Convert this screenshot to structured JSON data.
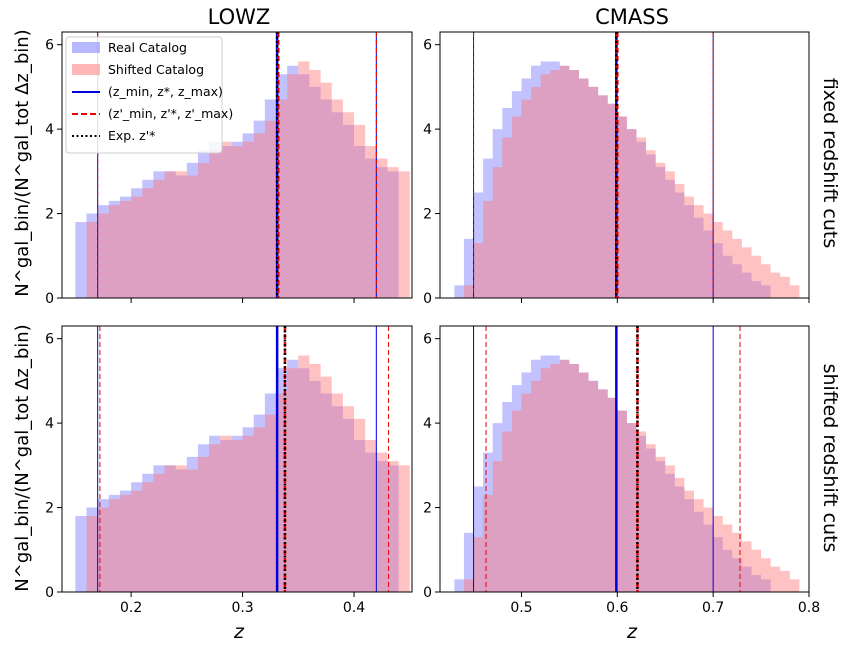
{
  "figure": {
    "column_titles": [
      "LOWZ",
      "CMASS"
    ],
    "row_titles": [
      "fixed redshift cuts",
      "shifted redshift cuts"
    ],
    "xlabel": "z",
    "ylabel": "N^gal_bin/(N^gal_tot Δz_bin)"
  },
  "legend": {
    "placement": "upper-left of top-left panel",
    "entries": [
      {
        "label": "Real Catalog",
        "kind": "patch",
        "color": "#9999ff"
      },
      {
        "label": "Shifted Catalog",
        "kind": "patch",
        "color": "#ff9999"
      },
      {
        "label": "(z_min, z*, z_max)",
        "kind": "line",
        "color": "#0000dd",
        "dash": "solid"
      },
      {
        "label": "(z'_min, z'*, z'_max)",
        "kind": "line",
        "color": "#ee0000",
        "dash": "dashed"
      },
      {
        "label": "Exp. z'*",
        "kind": "line",
        "color": "#000000",
        "dash": "dotted"
      }
    ]
  },
  "colors": {
    "real": "#7777ff",
    "shifted": "#ff7777",
    "blue_line": "#0000dd",
    "red_line": "#ee0000"
  },
  "chart_data": [
    {
      "type": "area",
      "panel": "LOWZ fixed redshift cuts",
      "xlim": [
        0.138,
        0.452
      ],
      "ylim": [
        0,
        6.3
      ],
      "xticks": [
        "0.2",
        "0.3",
        "0.4"
      ],
      "xtick_values": [
        0.2,
        0.3,
        0.4
      ],
      "yticks": [
        "0",
        "2",
        "4",
        "6"
      ],
      "ytick_values": [
        0,
        2,
        4,
        6
      ],
      "series": [
        {
          "name": "Real Catalog",
          "x": [
            0.15,
            0.16,
            0.17,
            0.18,
            0.19,
            0.2,
            0.21,
            0.22,
            0.23,
            0.24,
            0.25,
            0.26,
            0.27,
            0.28,
            0.29,
            0.3,
            0.31,
            0.32,
            0.33,
            0.34,
            0.35,
            0.36,
            0.37,
            0.38,
            0.39,
            0.4,
            0.41,
            0.42,
            0.43
          ],
          "y": [
            1.8,
            2.0,
            2.2,
            2.3,
            2.4,
            2.6,
            2.8,
            3.0,
            3.0,
            2.9,
            3.2,
            3.5,
            3.7,
            3.6,
            3.7,
            3.9,
            4.2,
            4.7,
            5.3,
            5.5,
            5.3,
            5.0,
            4.7,
            4.4,
            4.1,
            3.6,
            3.3,
            3.1,
            3.0
          ]
        },
        {
          "name": "Shifted Catalog",
          "x": [
            0.16,
            0.17,
            0.18,
            0.19,
            0.2,
            0.21,
            0.22,
            0.23,
            0.24,
            0.25,
            0.26,
            0.27,
            0.28,
            0.29,
            0.3,
            0.31,
            0.32,
            0.33,
            0.34,
            0.35,
            0.36,
            0.37,
            0.38,
            0.39,
            0.4,
            0.41,
            0.42,
            0.43,
            0.44
          ],
          "y": [
            1.8,
            2.0,
            2.2,
            2.3,
            2.4,
            2.6,
            2.8,
            3.0,
            3.0,
            2.9,
            3.2,
            3.5,
            3.7,
            3.6,
            3.7,
            3.9,
            4.2,
            4.7,
            5.3,
            5.6,
            5.4,
            5.1,
            4.7,
            4.4,
            4.1,
            3.6,
            3.3,
            3.1,
            3.0
          ]
        }
      ],
      "vlines": [
        {
          "x": 0.17,
          "style": "blue",
          "width": 1
        },
        {
          "x": 0.331,
          "style": "blue",
          "width": 2.5
        },
        {
          "x": 0.42,
          "style": "blue",
          "width": 1
        },
        {
          "x": 0.17,
          "style": "red",
          "width": 1
        },
        {
          "x": 0.332,
          "style": "red",
          "width": 2.5
        },
        {
          "x": 0.42,
          "style": "red",
          "width": 1
        },
        {
          "x": 0.331,
          "style": "dot",
          "width": 2.5
        }
      ]
    },
    {
      "type": "area",
      "panel": "CMASS fixed redshift cuts",
      "xlim": [
        0.415,
        0.8
      ],
      "ylim": [
        0,
        6.3
      ],
      "xticks": [
        "0.5",
        "0.6",
        "0.7",
        "0.8"
      ],
      "xtick_values": [
        0.5,
        0.6,
        0.7,
        0.8
      ],
      "yticks": [
        "0",
        "2",
        "4",
        "6"
      ],
      "ytick_values": [
        0,
        2,
        4,
        6
      ],
      "series": [
        {
          "name": "Real Catalog",
          "x": [
            0.43,
            0.44,
            0.45,
            0.46,
            0.47,
            0.48,
            0.49,
            0.5,
            0.51,
            0.52,
            0.53,
            0.54,
            0.55,
            0.56,
            0.57,
            0.58,
            0.59,
            0.6,
            0.61,
            0.62,
            0.63,
            0.64,
            0.65,
            0.66,
            0.67,
            0.68,
            0.69,
            0.7,
            0.71,
            0.72,
            0.73,
            0.74,
            0.75
          ],
          "y": [
            0.3,
            1.4,
            2.5,
            3.3,
            4.0,
            4.5,
            4.9,
            5.2,
            5.5,
            5.6,
            5.6,
            5.5,
            5.4,
            5.2,
            5.0,
            4.8,
            4.6,
            4.3,
            4.0,
            3.7,
            3.4,
            3.1,
            2.8,
            2.5,
            2.2,
            1.9,
            1.6,
            1.3,
            1.0,
            0.8,
            0.6,
            0.4,
            0.3
          ]
        },
        {
          "name": "Shifted Catalog",
          "x": [
            0.44,
            0.45,
            0.46,
            0.47,
            0.48,
            0.49,
            0.5,
            0.51,
            0.52,
            0.53,
            0.54,
            0.55,
            0.56,
            0.57,
            0.58,
            0.59,
            0.6,
            0.61,
            0.62,
            0.63,
            0.64,
            0.65,
            0.66,
            0.67,
            0.68,
            0.69,
            0.7,
            0.71,
            0.72,
            0.73,
            0.74,
            0.75,
            0.76,
            0.77,
            0.78
          ],
          "y": [
            0.3,
            1.3,
            2.3,
            3.1,
            3.8,
            4.3,
            4.7,
            5.0,
            5.3,
            5.4,
            5.5,
            5.4,
            5.2,
            5.0,
            4.8,
            4.6,
            4.3,
            4.0,
            3.8,
            3.5,
            3.2,
            3.0,
            2.7,
            2.4,
            2.2,
            2.0,
            1.8,
            1.6,
            1.4,
            1.2,
            1.0,
            0.8,
            0.6,
            0.5,
            0.3
          ]
        }
      ],
      "vlines": [
        {
          "x": 0.45,
          "style": "blue",
          "width": 1
        },
        {
          "x": 0.599,
          "style": "blue",
          "width": 2.5
        },
        {
          "x": 0.7,
          "style": "blue",
          "width": 1
        },
        {
          "x": 0.45,
          "style": "red",
          "width": 1
        },
        {
          "x": 0.6,
          "style": "red",
          "width": 2.5
        },
        {
          "x": 0.7,
          "style": "red",
          "width": 1
        },
        {
          "x": 0.599,
          "style": "dot",
          "width": 2.5
        }
      ]
    },
    {
      "type": "area",
      "panel": "LOWZ shifted redshift cuts",
      "xlim": [
        0.138,
        0.452
      ],
      "ylim": [
        0,
        6.3
      ],
      "xticks": [
        "0.2",
        "0.3",
        "0.4"
      ],
      "xtick_values": [
        0.2,
        0.3,
        0.4
      ],
      "yticks": [
        "0",
        "2",
        "4",
        "6"
      ],
      "ytick_values": [
        0,
        2,
        4,
        6
      ],
      "series": [
        {
          "name": "Real Catalog",
          "x": [
            0.15,
            0.16,
            0.17,
            0.18,
            0.19,
            0.2,
            0.21,
            0.22,
            0.23,
            0.24,
            0.25,
            0.26,
            0.27,
            0.28,
            0.29,
            0.3,
            0.31,
            0.32,
            0.33,
            0.34,
            0.35,
            0.36,
            0.37,
            0.38,
            0.39,
            0.4,
            0.41,
            0.42,
            0.43
          ],
          "y": [
            1.8,
            2.0,
            2.2,
            2.3,
            2.4,
            2.6,
            2.8,
            3.0,
            3.0,
            2.9,
            3.2,
            3.5,
            3.7,
            3.6,
            3.7,
            3.9,
            4.2,
            4.7,
            5.3,
            5.5,
            5.3,
            5.0,
            4.7,
            4.4,
            4.1,
            3.6,
            3.3,
            3.1,
            3.0
          ]
        },
        {
          "name": "Shifted Catalog",
          "x": [
            0.16,
            0.17,
            0.18,
            0.19,
            0.2,
            0.21,
            0.22,
            0.23,
            0.24,
            0.25,
            0.26,
            0.27,
            0.28,
            0.29,
            0.3,
            0.31,
            0.32,
            0.33,
            0.34,
            0.35,
            0.36,
            0.37,
            0.38,
            0.39,
            0.4,
            0.41,
            0.42,
            0.43,
            0.44
          ],
          "y": [
            1.8,
            2.0,
            2.2,
            2.3,
            2.4,
            2.6,
            2.8,
            3.0,
            3.0,
            2.9,
            3.2,
            3.5,
            3.7,
            3.6,
            3.7,
            3.9,
            4.2,
            4.7,
            5.3,
            5.6,
            5.4,
            5.1,
            4.7,
            4.4,
            4.1,
            3.6,
            3.3,
            3.1,
            3.0
          ]
        }
      ],
      "vlines": [
        {
          "x": 0.17,
          "style": "blue",
          "width": 1
        },
        {
          "x": 0.331,
          "style": "blue",
          "width": 2.5
        },
        {
          "x": 0.42,
          "style": "blue",
          "width": 1
        },
        {
          "x": 0.172,
          "style": "red",
          "width": 1
        },
        {
          "x": 0.338,
          "style": "red",
          "width": 2.5
        },
        {
          "x": 0.431,
          "style": "red",
          "width": 1
        },
        {
          "x": 0.338,
          "style": "dot",
          "width": 2.5
        }
      ]
    },
    {
      "type": "area",
      "panel": "CMASS shifted redshift cuts",
      "xlim": [
        0.415,
        0.8
      ],
      "ylim": [
        0,
        6.3
      ],
      "xticks": [
        "0.5",
        "0.6",
        "0.7",
        "0.8"
      ],
      "xtick_values": [
        0.5,
        0.6,
        0.7,
        0.8
      ],
      "yticks": [
        "0",
        "2",
        "4",
        "6"
      ],
      "ytick_values": [
        0,
        2,
        4,
        6
      ],
      "series": [
        {
          "name": "Real Catalog",
          "x": [
            0.43,
            0.44,
            0.45,
            0.46,
            0.47,
            0.48,
            0.49,
            0.5,
            0.51,
            0.52,
            0.53,
            0.54,
            0.55,
            0.56,
            0.57,
            0.58,
            0.59,
            0.6,
            0.61,
            0.62,
            0.63,
            0.64,
            0.65,
            0.66,
            0.67,
            0.68,
            0.69,
            0.7,
            0.71,
            0.72,
            0.73,
            0.74,
            0.75
          ],
          "y": [
            0.3,
            1.4,
            2.5,
            3.3,
            4.0,
            4.5,
            4.9,
            5.2,
            5.5,
            5.6,
            5.6,
            5.5,
            5.4,
            5.2,
            5.0,
            4.8,
            4.6,
            4.3,
            4.0,
            3.7,
            3.4,
            3.1,
            2.8,
            2.5,
            2.2,
            1.9,
            1.6,
            1.3,
            1.0,
            0.8,
            0.6,
            0.4,
            0.3
          ]
        },
        {
          "name": "Shifted Catalog",
          "x": [
            0.44,
            0.45,
            0.46,
            0.47,
            0.48,
            0.49,
            0.5,
            0.51,
            0.52,
            0.53,
            0.54,
            0.55,
            0.56,
            0.57,
            0.58,
            0.59,
            0.6,
            0.61,
            0.62,
            0.63,
            0.64,
            0.65,
            0.66,
            0.67,
            0.68,
            0.69,
            0.7,
            0.71,
            0.72,
            0.73,
            0.74,
            0.75,
            0.76,
            0.77,
            0.78
          ],
          "y": [
            0.3,
            1.3,
            2.3,
            3.1,
            3.8,
            4.3,
            4.7,
            5.0,
            5.3,
            5.4,
            5.5,
            5.4,
            5.2,
            5.0,
            4.8,
            4.6,
            4.3,
            4.0,
            3.8,
            3.5,
            3.2,
            3.0,
            2.7,
            2.4,
            2.2,
            2.0,
            1.8,
            1.6,
            1.4,
            1.2,
            1.0,
            0.8,
            0.6,
            0.5,
            0.3
          ]
        }
      ],
      "vlines": [
        {
          "x": 0.45,
          "style": "blue",
          "width": 1
        },
        {
          "x": 0.599,
          "style": "blue",
          "width": 2.5
        },
        {
          "x": 0.7,
          "style": "blue",
          "width": 1
        },
        {
          "x": 0.463,
          "style": "red",
          "width": 1
        },
        {
          "x": 0.621,
          "style": "red",
          "width": 2.5
        },
        {
          "x": 0.728,
          "style": "red",
          "width": 1
        },
        {
          "x": 0.621,
          "style": "dot",
          "width": 2.5
        }
      ]
    }
  ]
}
